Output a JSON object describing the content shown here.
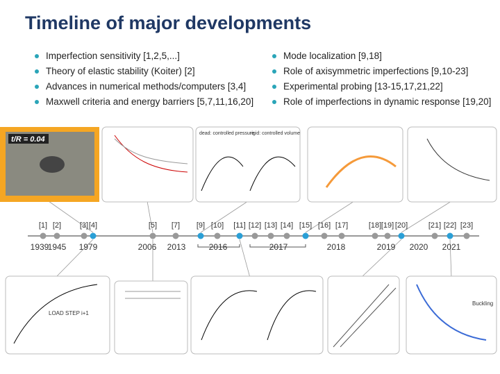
{
  "title": "Timeline of major developments",
  "bullets_left": [
    "Imperfection sensitivity [1,2,5,...]",
    "Theory of elastic stability (Koiter) [2]",
    "Advances in numerical methods/computers [3,4]",
    "Maxwell criteria and energy barriers [5,7,11,16,20]"
  ],
  "bullets_right": [
    "Mode localization [9,18]",
    "Role of axisymmetric imperfections [9,10-23]",
    "Experimental probing [13-15,17,21,22]",
    "Role of imperfections in dynamic response [19,20]"
  ],
  "timeline": {
    "refs": [
      "[1]",
      "[2]",
      "[3]",
      "[4]",
      "[5]",
      "[7]",
      "[9]",
      "[10]",
      "[11]",
      "[12]",
      "[13]",
      "[14]",
      "[15]",
      "[16]",
      "[17]",
      "[18]",
      "[19]",
      "[20]",
      "[21]",
      "[22]",
      "[23]"
    ],
    "years": [
      "1939",
      "1945",
      "1979",
      "2006",
      "2013",
      "2016",
      "2017",
      "2018",
      "2019",
      "2020",
      "2021"
    ]
  },
  "figures": {
    "photo_label": "t/R = 0.04",
    "dead": "dead: controlled pressure",
    "rigid": "rigid: controlled volume",
    "load_step": "LOAD STEP i+1",
    "buckling": "Buckling"
  }
}
